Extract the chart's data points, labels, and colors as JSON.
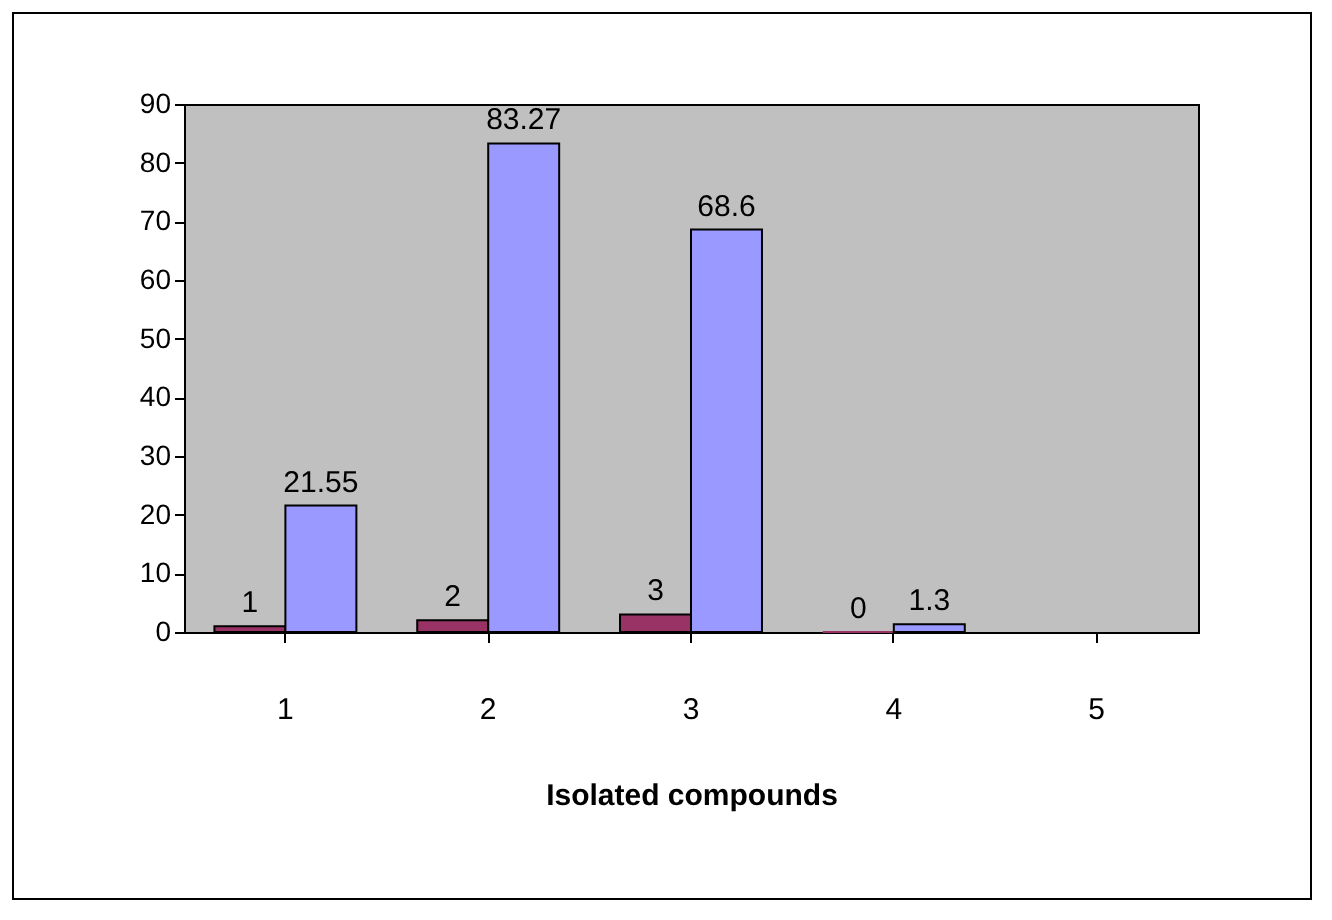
{
  "chart_data": {
    "type": "bar",
    "xlabel": "Isolated compounds",
    "categories": [
      "1",
      "2",
      "3",
      "4",
      "5"
    ],
    "series": [
      {
        "color": "#993366",
        "values": [
          1,
          2,
          3,
          0,
          null
        ]
      },
      {
        "color": "#9999ff",
        "values": [
          21.55,
          83.27,
          68.6,
          1.3,
          null
        ]
      }
    ],
    "ylim": [
      0,
      90
    ],
    "yticks": [
      0,
      10,
      20,
      30,
      40,
      50,
      60,
      70,
      80,
      90
    ],
    "grid": false,
    "legend": false,
    "data_labels": true
  }
}
